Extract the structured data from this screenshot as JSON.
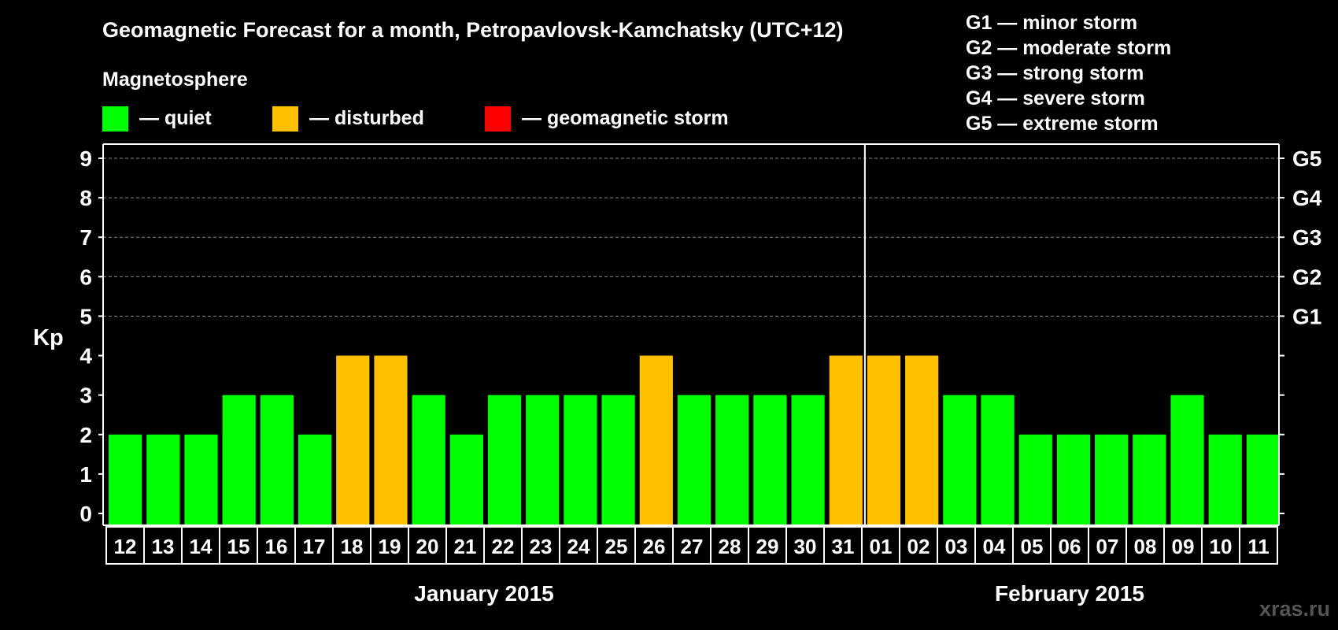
{
  "title": "Geomagnetic Forecast for a month, Petropavlovsk-Kamchatsky (UTC+12)",
  "legend_title": "Magnetosphere",
  "legend": [
    {
      "key": "quiet",
      "label": "— quiet",
      "color": "#00ff00"
    },
    {
      "key": "disturbed",
      "label": "— disturbed",
      "color": "#ffc000"
    },
    {
      "key": "storm",
      "label": "— geomagnetic storm",
      "color": "#ff0000"
    }
  ],
  "storm_scale": [
    "G1 — minor storm",
    "G2 — moderate storm",
    "G3 — strong storm",
    "G4 — severe storm",
    "G5 — extreme storm"
  ],
  "watermark": "xras.ru",
  "colors": {
    "quiet": "#00ff00",
    "disturbed": "#ffc000",
    "storm": "#ff0000",
    "background": "#000000",
    "axis": "#ffffff"
  },
  "chart_data": {
    "type": "bar",
    "ylabel": "Kp",
    "ylim": [
      0,
      9
    ],
    "yticks": [
      0,
      1,
      2,
      3,
      4,
      5,
      6,
      7,
      8,
      9
    ],
    "right_axis_labels": [
      {
        "value": 5,
        "label": "G1"
      },
      {
        "value": 6,
        "label": "G2"
      },
      {
        "value": 7,
        "label": "G3"
      },
      {
        "value": 8,
        "label": "G4"
      },
      {
        "value": 9,
        "label": "G5"
      }
    ],
    "grid": "dashed horizontal lines at 5–9",
    "categories": [
      "12",
      "13",
      "14",
      "15",
      "16",
      "17",
      "18",
      "19",
      "20",
      "21",
      "22",
      "23",
      "24",
      "25",
      "26",
      "27",
      "28",
      "29",
      "30",
      "31",
      "01",
      "02",
      "03",
      "04",
      "05",
      "06",
      "07",
      "08",
      "09",
      "10",
      "11"
    ],
    "values": [
      2,
      2,
      2,
      3,
      3,
      2,
      4,
      4,
      3,
      2,
      3,
      3,
      3,
      3,
      4,
      3,
      3,
      3,
      3,
      4,
      4,
      4,
      3,
      3,
      2,
      2,
      2,
      2,
      3,
      2,
      2
    ],
    "month_groups": [
      {
        "label": "January 2015",
        "start": 0,
        "end": 19
      },
      {
        "label": "February 2015",
        "start": 20,
        "end": 30
      }
    ],
    "month_divider_after_index": 19
  }
}
